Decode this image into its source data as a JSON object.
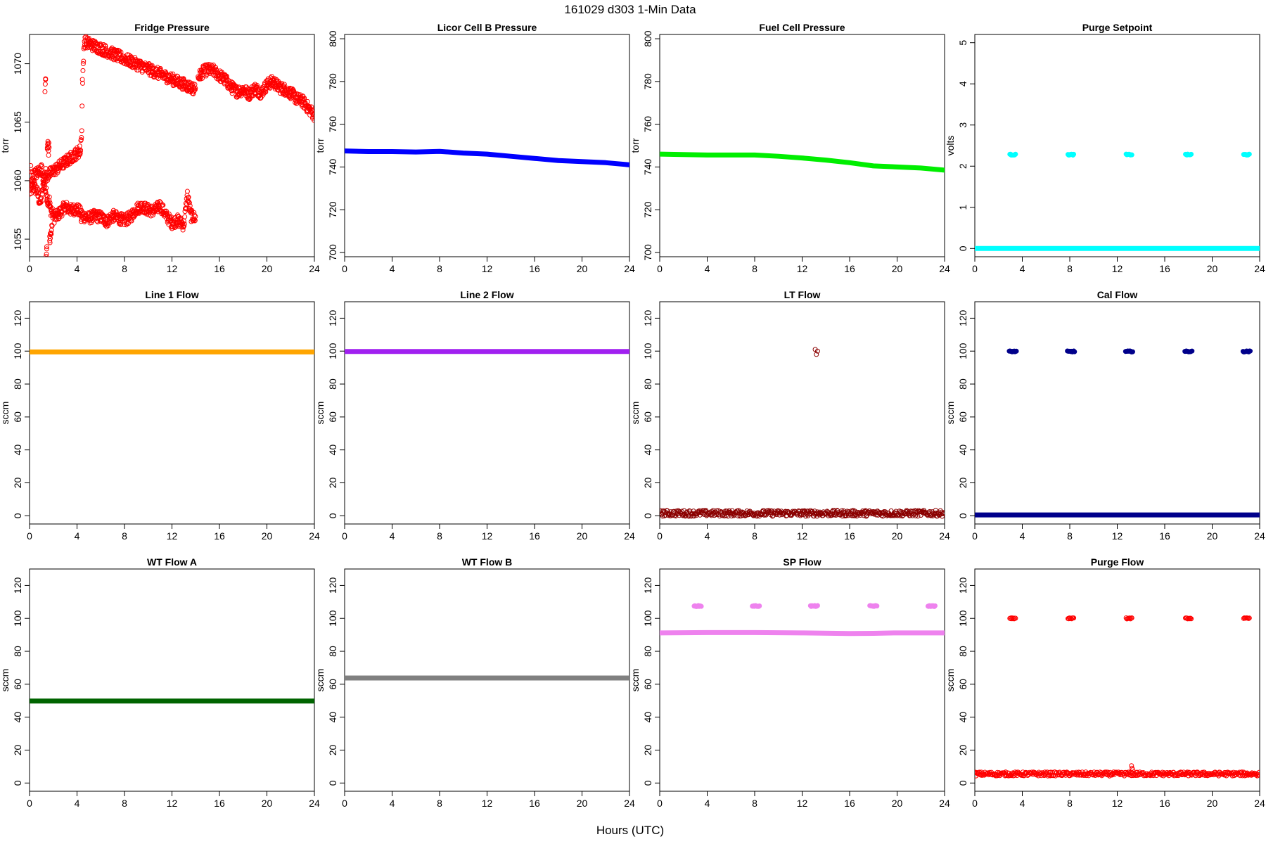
{
  "title": "161029    d303    1-Min Data",
  "xlabel": "Hours (UTC)",
  "chart_data": [
    {
      "type": "scatter",
      "title": "Fridge Pressure",
      "ylabel": "torr",
      "color": "#ff0000",
      "marker": "open",
      "xlim": [
        0,
        24
      ],
      "ylim": [
        1053.5,
        1072.5
      ],
      "xticks": [
        0,
        4,
        8,
        12,
        16,
        20,
        24
      ],
      "yticks": [
        1055,
        1060,
        1065,
        1070
      ],
      "series": [
        {
          "x": [
            0.0,
            0.3,
            0.6,
            0.9,
            1.2,
            1.5,
            1.8,
            2.1,
            2.5,
            3.0,
            3.5,
            4.0,
            4.5,
            5.0,
            5.5,
            6.0,
            6.5,
            7.0,
            7.5,
            8.0,
            8.5,
            9.0,
            9.5,
            10.0,
            10.5,
            11.0,
            11.5,
            12.0,
            12.5,
            13.0,
            13.3,
            13.6,
            14.0
          ],
          "y": [
            1059.0,
            1059.5,
            1059.2,
            1058.0,
            1059.8,
            1058.5,
            1057.5,
            1056.8,
            1057.2,
            1057.8,
            1057.5,
            1057.6,
            1057.0,
            1056.8,
            1057.0,
            1056.9,
            1056.5,
            1057.0,
            1056.8,
            1056.6,
            1056.9,
            1057.6,
            1057.8,
            1057.5,
            1057.4,
            1057.9,
            1057.0,
            1056.4,
            1056.6,
            1056.2,
            1058.8,
            1057.0,
            1056.8
          ]
        },
        {
          "x": [
            14.2,
            14.6,
            15.0,
            15.5,
            16.0,
            16.5,
            17.0,
            17.5,
            18.0,
            18.5,
            19.0,
            19.5,
            20.0,
            20.5,
            21.0,
            21.5,
            22.0,
            22.5,
            23.0,
            23.5,
            24.0
          ],
          "y": [
            1068.8,
            1069.3,
            1069.5,
            1069.4,
            1069.0,
            1068.6,
            1068.0,
            1067.6,
            1067.8,
            1067.4,
            1067.9,
            1067.5,
            1068.2,
            1068.5,
            1068.0,
            1067.8,
            1067.5,
            1067.0,
            1066.8,
            1066.2,
            1065.6
          ]
        },
        {
          "x": [
            1.3,
            1.35,
            1.4,
            1.45,
            1.5,
            1.55,
            1.6,
            1.65,
            1.7,
            1.75,
            1.9,
            0.1,
            0.2,
            1.0,
            1.2,
            4.3,
            4.35,
            4.4,
            4.45,
            4.5,
            4.55,
            4.6,
            14.0,
            4.35,
            4.4
          ],
          "y": [
            1068.1,
            1068.3,
            1053.8,
            1054.0,
            1062.8,
            1063.1,
            1062.6,
            1063.0,
            1054.8,
            1055.2,
            1056.0,
            1061.0,
            1060.3,
            1061.0,
            1060.2,
            1062.6,
            1063.9,
            1064.2,
            1068.5,
            1069.0,
            1070.4,
            1071.9,
            1067.8,
            1057.0,
            1056.5
          ]
        }
      ]
    },
    {
      "type": "scatter",
      "title": "Licor Cell B Pressure",
      "ylabel": "torr",
      "color": "#0000ff",
      "marker": "filled",
      "xlim": [
        0,
        24
      ],
      "ylim": [
        698,
        802
      ],
      "xticks": [
        0,
        4,
        8,
        12,
        16,
        20,
        24
      ],
      "yticks": [
        700,
        720,
        740,
        760,
        780,
        800
      ],
      "series": [
        {
          "x": [
            0,
            2,
            4,
            6,
            8,
            10,
            12,
            14,
            16,
            18,
            20,
            22,
            24
          ],
          "y": [
            747.5,
            747.2,
            747.2,
            747.0,
            747.3,
            746.5,
            746.0,
            745.0,
            744.0,
            743.0,
            742.5,
            742.0,
            741.0
          ]
        }
      ]
    },
    {
      "type": "scatter",
      "title": "Fuel Cell Pressure",
      "ylabel": "torr",
      "color": "#00ee00",
      "marker": "filled",
      "xlim": [
        0,
        24
      ],
      "ylim": [
        698,
        802
      ],
      "xticks": [
        0,
        4,
        8,
        12,
        16,
        20,
        24
      ],
      "yticks": [
        700,
        720,
        740,
        760,
        780,
        800
      ],
      "series": [
        {
          "x": [
            0,
            2,
            4,
            6,
            8,
            10,
            12,
            14,
            16,
            18,
            20,
            22,
            24
          ],
          "y": [
            746.0,
            745.8,
            745.6,
            745.6,
            745.6,
            745.0,
            744.2,
            743.2,
            742.0,
            740.5,
            740.0,
            739.5,
            738.5
          ]
        }
      ]
    },
    {
      "type": "scatter",
      "title": "Purge Setpoint",
      "ylabel": "volts",
      "color": "#00ffff",
      "marker": "filled",
      "xlim": [
        0,
        24
      ],
      "ylim": [
        -0.2,
        5.2
      ],
      "xticks": [
        0,
        4,
        8,
        12,
        16,
        20,
        24
      ],
      "yticks": [
        0,
        1,
        2,
        3,
        4,
        5
      ],
      "series": [
        {
          "x": [
            0,
            24
          ],
          "y": [
            0,
            0
          ],
          "line": true
        },
        {
          "x": [
            3.2,
            8.1,
            13.0,
            18.0,
            22.9
          ],
          "y": [
            2.28,
            2.28,
            2.28,
            2.28,
            2.28
          ],
          "burst": 0.25
        }
      ]
    },
    {
      "type": "scatter",
      "title": "Line 1 Flow",
      "ylabel": "sccm",
      "color": "#ffa500",
      "marker": "filled",
      "xlim": [
        0,
        24
      ],
      "ylim": [
        -5,
        130
      ],
      "xticks": [
        0,
        4,
        8,
        12,
        16,
        20,
        24
      ],
      "yticks": [
        0,
        20,
        40,
        60,
        80,
        100,
        120
      ],
      "series": [
        {
          "x": [
            0,
            24
          ],
          "y": [
            99.5,
            99.5
          ],
          "line": true
        }
      ]
    },
    {
      "type": "scatter",
      "title": "Line 2 Flow",
      "ylabel": "sccm",
      "color": "#a020f0",
      "marker": "filled",
      "xlim": [
        0,
        24
      ],
      "ylim": [
        -5,
        130
      ],
      "xticks": [
        0,
        4,
        8,
        12,
        16,
        20,
        24
      ],
      "yticks": [
        0,
        20,
        40,
        60,
        80,
        100,
        120
      ],
      "series": [
        {
          "x": [
            0,
            24
          ],
          "y": [
            99.8,
            99.8
          ],
          "line": true
        }
      ]
    },
    {
      "type": "scatter",
      "title": "LT Flow",
      "ylabel": "sccm",
      "color": "#8b0000",
      "marker": "open",
      "xlim": [
        0,
        24
      ],
      "ylim": [
        -5,
        130
      ],
      "xticks": [
        0,
        4,
        8,
        12,
        16,
        20,
        24
      ],
      "yticks": [
        0,
        20,
        40,
        60,
        80,
        100,
        120
      ],
      "series": [
        {
          "x": [
            0,
            24
          ],
          "y": [
            1.5,
            1.5
          ],
          "band": 1.8
        },
        {
          "x": [
            13.1,
            13.2,
            13.3
          ],
          "y": [
            101,
            98,
            100
          ]
        }
      ]
    },
    {
      "type": "scatter",
      "title": "Cal Flow",
      "ylabel": "sccm",
      "color": "#00008b",
      "marker": "filled",
      "xlim": [
        0,
        24
      ],
      "ylim": [
        -5,
        130
      ],
      "xticks": [
        0,
        4,
        8,
        12,
        16,
        20,
        24
      ],
      "yticks": [
        0,
        20,
        40,
        60,
        80,
        100,
        120
      ],
      "series": [
        {
          "x": [
            0,
            24
          ],
          "y": [
            0.5,
            0.5
          ],
          "line": true
        },
        {
          "x": [
            3.2,
            8.1,
            13.0,
            18.0,
            22.9
          ],
          "y": [
            99.8,
            99.8,
            99.8,
            99.8,
            99.8
          ],
          "burst": 0.3
        }
      ]
    },
    {
      "type": "scatter",
      "title": "WT Flow A",
      "ylabel": "sccm",
      "color": "#006400",
      "marker": "filled",
      "xlim": [
        0,
        24
      ],
      "ylim": [
        -5,
        130
      ],
      "xticks": [
        0,
        4,
        8,
        12,
        16,
        20,
        24
      ],
      "yticks": [
        0,
        20,
        40,
        60,
        80,
        100,
        120
      ],
      "series": [
        {
          "x": [
            0,
            24
          ],
          "y": [
            49.8,
            49.8
          ],
          "line": true
        }
      ]
    },
    {
      "type": "scatter",
      "title": "WT Flow B",
      "ylabel": "sccm",
      "color": "#808080",
      "marker": "filled",
      "xlim": [
        0,
        24
      ],
      "ylim": [
        -5,
        130
      ],
      "xticks": [
        0,
        4,
        8,
        12,
        16,
        20,
        24
      ],
      "yticks": [
        0,
        20,
        40,
        60,
        80,
        100,
        120
      ],
      "series": [
        {
          "x": [
            0,
            24
          ],
          "y": [
            63.8,
            63.8
          ],
          "line": true
        }
      ]
    },
    {
      "type": "scatter",
      "title": "SP Flow",
      "ylabel": "sccm",
      "color": "#ee82ee",
      "marker": "filled",
      "xlim": [
        0,
        24
      ],
      "ylim": [
        -5,
        130
      ],
      "xticks": [
        0,
        4,
        8,
        12,
        16,
        20,
        24
      ],
      "yticks": [
        0,
        20,
        40,
        60,
        80,
        100,
        120
      ],
      "series": [
        {
          "x": [
            0,
            4,
            8,
            12,
            16,
            18,
            20,
            24
          ],
          "y": [
            91.2,
            91.4,
            91.4,
            91.2,
            90.8,
            90.9,
            91.2,
            91.2
          ],
          "line": true
        },
        {
          "x": [
            3.2,
            8.1,
            13.0,
            18.0,
            22.9
          ],
          "y": [
            107.5,
            107.5,
            107.5,
            107.5,
            107.5
          ],
          "burst": 0.3
        }
      ]
    },
    {
      "type": "scatter",
      "title": "Purge Flow",
      "ylabel": "sccm",
      "color": "#ff0000",
      "marker": "open",
      "xlim": [
        0,
        24
      ],
      "ylim": [
        -5,
        130
      ],
      "xticks": [
        0,
        4,
        8,
        12,
        16,
        20,
        24
      ],
      "yticks": [
        0,
        20,
        40,
        60,
        80,
        100,
        120
      ],
      "series": [
        {
          "x": [
            0,
            24
          ],
          "y": [
            5.5,
            5.5
          ],
          "band": 1.2
        },
        {
          "x": [
            3.2,
            8.1,
            13.0,
            18.0,
            22.9
          ],
          "y": [
            100,
            100,
            100,
            100,
            100
          ],
          "burst": 0.25
        },
        {
          "x": [
            13.2,
            13.25,
            13.3
          ],
          "y": [
            10.5,
            9.0,
            8.0
          ]
        }
      ]
    }
  ]
}
